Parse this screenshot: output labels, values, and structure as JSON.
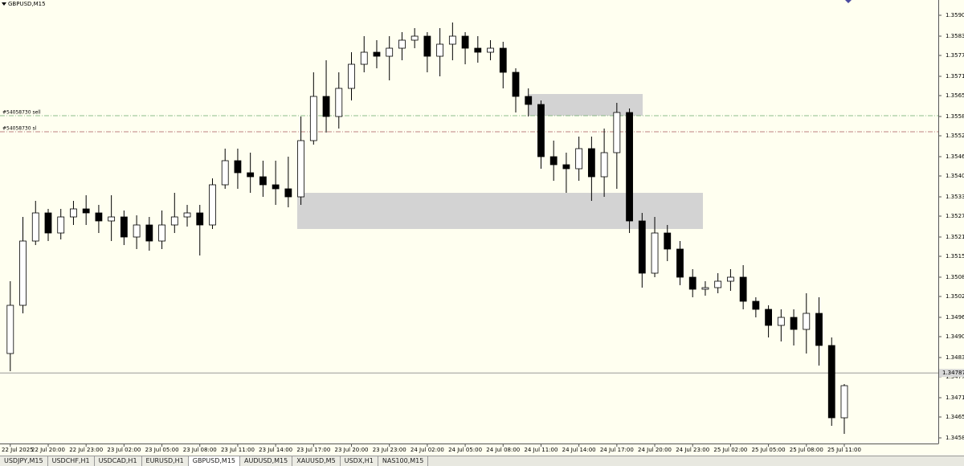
{
  "chart_data": {
    "type": "candlestick",
    "title": "GBPUSD,M15",
    "categories": [
      "22 Jul 2025",
      null,
      null,
      "22 Jul 20:00",
      null,
      null,
      "22 Jul 23:00",
      null,
      null,
      "23 Jul 02:00",
      null,
      null,
      "23 Jul 05:00",
      null,
      null,
      "23 Jul 08:00",
      null,
      null,
      "23 Jul 11:00",
      null,
      null,
      "23 Jul 14:00",
      null,
      null,
      "23 Jul 17:00",
      null,
      null,
      "23 Jul 20:00",
      null,
      null,
      "23 Jul 23:00",
      null,
      null,
      "24 Jul 02:00",
      null,
      null,
      "24 Jul 05:00",
      null,
      null,
      "24 Jul 08:00",
      null,
      null,
      "24 Jul 11:00",
      null,
      null,
      "24 Jul 14:00",
      null,
      null,
      "24 Jul 17:00",
      null,
      null,
      "24 Jul 20:00",
      null,
      null,
      "24 Jul 23:00",
      null,
      null,
      "25 Jul 02:00",
      null,
      null,
      "25 Jul 05:00",
      null,
      null,
      "25 Jul 08:00",
      null,
      null,
      "25 Jul 11:00"
    ],
    "open": [
      1.348475,
      1.349975,
      1.351975,
      1.35285,
      1.352225,
      1.352725,
      1.352975,
      1.35285,
      1.3526,
      1.352725,
      1.3521,
      1.352475,
      1.351975,
      1.352475,
      1.352725,
      1.35285,
      1.352475,
      1.353725,
      1.354475,
      1.3541,
      1.353975,
      1.353725,
      1.3536,
      1.35335,
      1.3551,
      1.356475,
      1.35585,
      1.356725,
      1.357475,
      1.35785,
      1.357725,
      1.357975,
      1.358225,
      1.35835,
      1.357725,
      1.3581,
      1.35835,
      1.357975,
      1.35785,
      1.357975,
      1.357225,
      1.356475,
      1.356225,
      1.3546,
      1.35435,
      1.354225,
      1.35485,
      1.353975,
      1.354725,
      1.355975,
      1.3526,
      1.350975,
      1.352225,
      1.351725,
      1.35085,
      1.350475,
      1.350525,
      1.350725,
      1.35085,
      1.3501,
      1.34985,
      1.34935,
      1.3496,
      1.349225,
      1.349725,
      1.348725,
      1.346475
    ],
    "high": [
      1.350725,
      1.352725,
      1.353225,
      1.352975,
      1.352975,
      1.353225,
      1.3534,
      1.3531,
      1.3534,
      1.352925,
      1.352775,
      1.352725,
      1.352925,
      1.353475,
      1.3531,
      1.3531,
      1.353925,
      1.35485,
      1.35485,
      1.354725,
      1.354475,
      1.354475,
      1.3546,
      1.35585,
      1.357225,
      1.3576,
      1.357225,
      1.35785,
      1.35835,
      1.358225,
      1.35835,
      1.358475,
      1.3586,
      1.358475,
      1.3586,
      1.358775,
      1.358475,
      1.35835,
      1.358225,
      1.358175,
      1.35735,
      1.356725,
      1.35635,
      1.3551,
      1.354725,
      1.355225,
      1.355225,
      1.355475,
      1.356275,
      1.3561,
      1.35285,
      1.352725,
      1.352475,
      1.351975,
      1.3511,
      1.350725,
      1.350975,
      1.3511,
      1.351225,
      1.350225,
      1.349975,
      1.34985,
      1.34985,
      1.35035,
      1.350225,
      1.348975,
      1.347525
    ],
    "low": [
      1.347925,
      1.349725,
      1.35185,
      1.351975,
      1.352025,
      1.352475,
      1.352475,
      1.352225,
      1.351975,
      1.35185,
      1.351725,
      1.351675,
      1.351725,
      1.352225,
      1.352425,
      1.351525,
      1.35235,
      1.3536,
      1.3536,
      1.353475,
      1.35335,
      1.3531,
      1.353025,
      1.3531,
      1.354975,
      1.35535,
      1.355475,
      1.35635,
      1.357225,
      1.35735,
      1.356975,
      1.3576,
      1.357975,
      1.357225,
      1.3571,
      1.3576,
      1.357475,
      1.357525,
      1.3576,
      1.356725,
      1.355975,
      1.35585,
      1.354225,
      1.35385,
      1.353475,
      1.35385,
      1.353225,
      1.35335,
      1.3536,
      1.352225,
      1.350525,
      1.35085,
      1.35135,
      1.3506,
      1.350225,
      1.350275,
      1.35035,
      1.350425,
      1.34985,
      1.3496,
      1.348975,
      1.34885,
      1.348725,
      1.348475,
      1.3481,
      1.346225,
      1.345975
    ],
    "close": [
      1.349975,
      1.351975,
      1.35285,
      1.352225,
      1.352725,
      1.352975,
      1.35285,
      1.3526,
      1.352725,
      1.3521,
      1.352475,
      1.351975,
      1.352475,
      1.352725,
      1.35285,
      1.352475,
      1.353725,
      1.354475,
      1.3541,
      1.353975,
      1.353725,
      1.3536,
      1.35335,
      1.3551,
      1.356475,
      1.35585,
      1.356725,
      1.357475,
      1.35785,
      1.357725,
      1.357975,
      1.358225,
      1.35835,
      1.357725,
      1.3581,
      1.35835,
      1.357975,
      1.35785,
      1.357975,
      1.357225,
      1.356475,
      1.356225,
      1.3546,
      1.35435,
      1.354225,
      1.35485,
      1.353975,
      1.354725,
      1.355975,
      1.3526,
      1.350975,
      1.352225,
      1.351725,
      1.35085,
      1.350475,
      1.350525,
      1.350725,
      1.35085,
      1.3501,
      1.34985,
      1.34935,
      1.3496,
      1.349225,
      1.349725,
      1.348725,
      1.346475,
      1.347475
    ],
    "up_color": "#ffffff",
    "down_color": "#000000",
    "ylim": [
      1.345675,
      1.359475
    ],
    "yticks": [
      {
        "value": 1.359,
        "label": "1.35900"
      },
      1.35835,
      1.35775,
      {
        "value": 1.3571,
        "label": "1.35710"
      },
      {
        "value": 1.3565,
        "label": "1.35650"
      },
      1.35585,
      1.35525,
      {
        "value": 1.3546,
        "label": "1.35460"
      },
      {
        "value": 1.354,
        "label": "1.35400"
      },
      1.35335,
      1.35275,
      {
        "value": 1.3521,
        "label": "1.35210"
      },
      {
        "value": 1.3515,
        "label": "1.35150"
      },
      1.35085,
      1.35025,
      {
        "value": 1.3496,
        "label": "1.34960"
      },
      {
        "value": 1.349,
        "label": "1.34900"
      },
      1.34835,
      1.34775,
      {
        "value": 1.3471,
        "label": "1.34710"
      },
      {
        "value": 1.3465,
        "label": "1.34650"
      },
      1.34585
    ],
    "zones": [
      {
        "top": 1.35655,
        "bottom": 1.355875,
        "color": "#d3d3d3"
      },
      {
        "top": 1.353475,
        "bottom": 1.35235,
        "color": "#d3d3d3"
      }
    ],
    "levels": [
      {
        "label": "#54058730 sell",
        "value": 1.355875,
        "color": "#6aa86a"
      },
      {
        "label": "#54058730 sl",
        "value": 1.355375,
        "color": "#a85a5a"
      }
    ],
    "last_price": 1.34787
  },
  "tabs": [
    {
      "label": "USDJPY,M15",
      "active": false
    },
    {
      "label": "USDCHF,H1",
      "active": false
    },
    {
      "label": "USDCAD,H1",
      "active": false
    },
    {
      "label": "EURUSD,H1",
      "active": false
    },
    {
      "label": "GBPUSD,M15",
      "active": true
    },
    {
      "label": "AUDUSD,M15",
      "active": false
    },
    {
      "label": "XAUUSD,M5",
      "active": false
    },
    {
      "label": "USDX,H1",
      "active": false
    },
    {
      "label": "NAS100,M15",
      "active": false
    }
  ]
}
